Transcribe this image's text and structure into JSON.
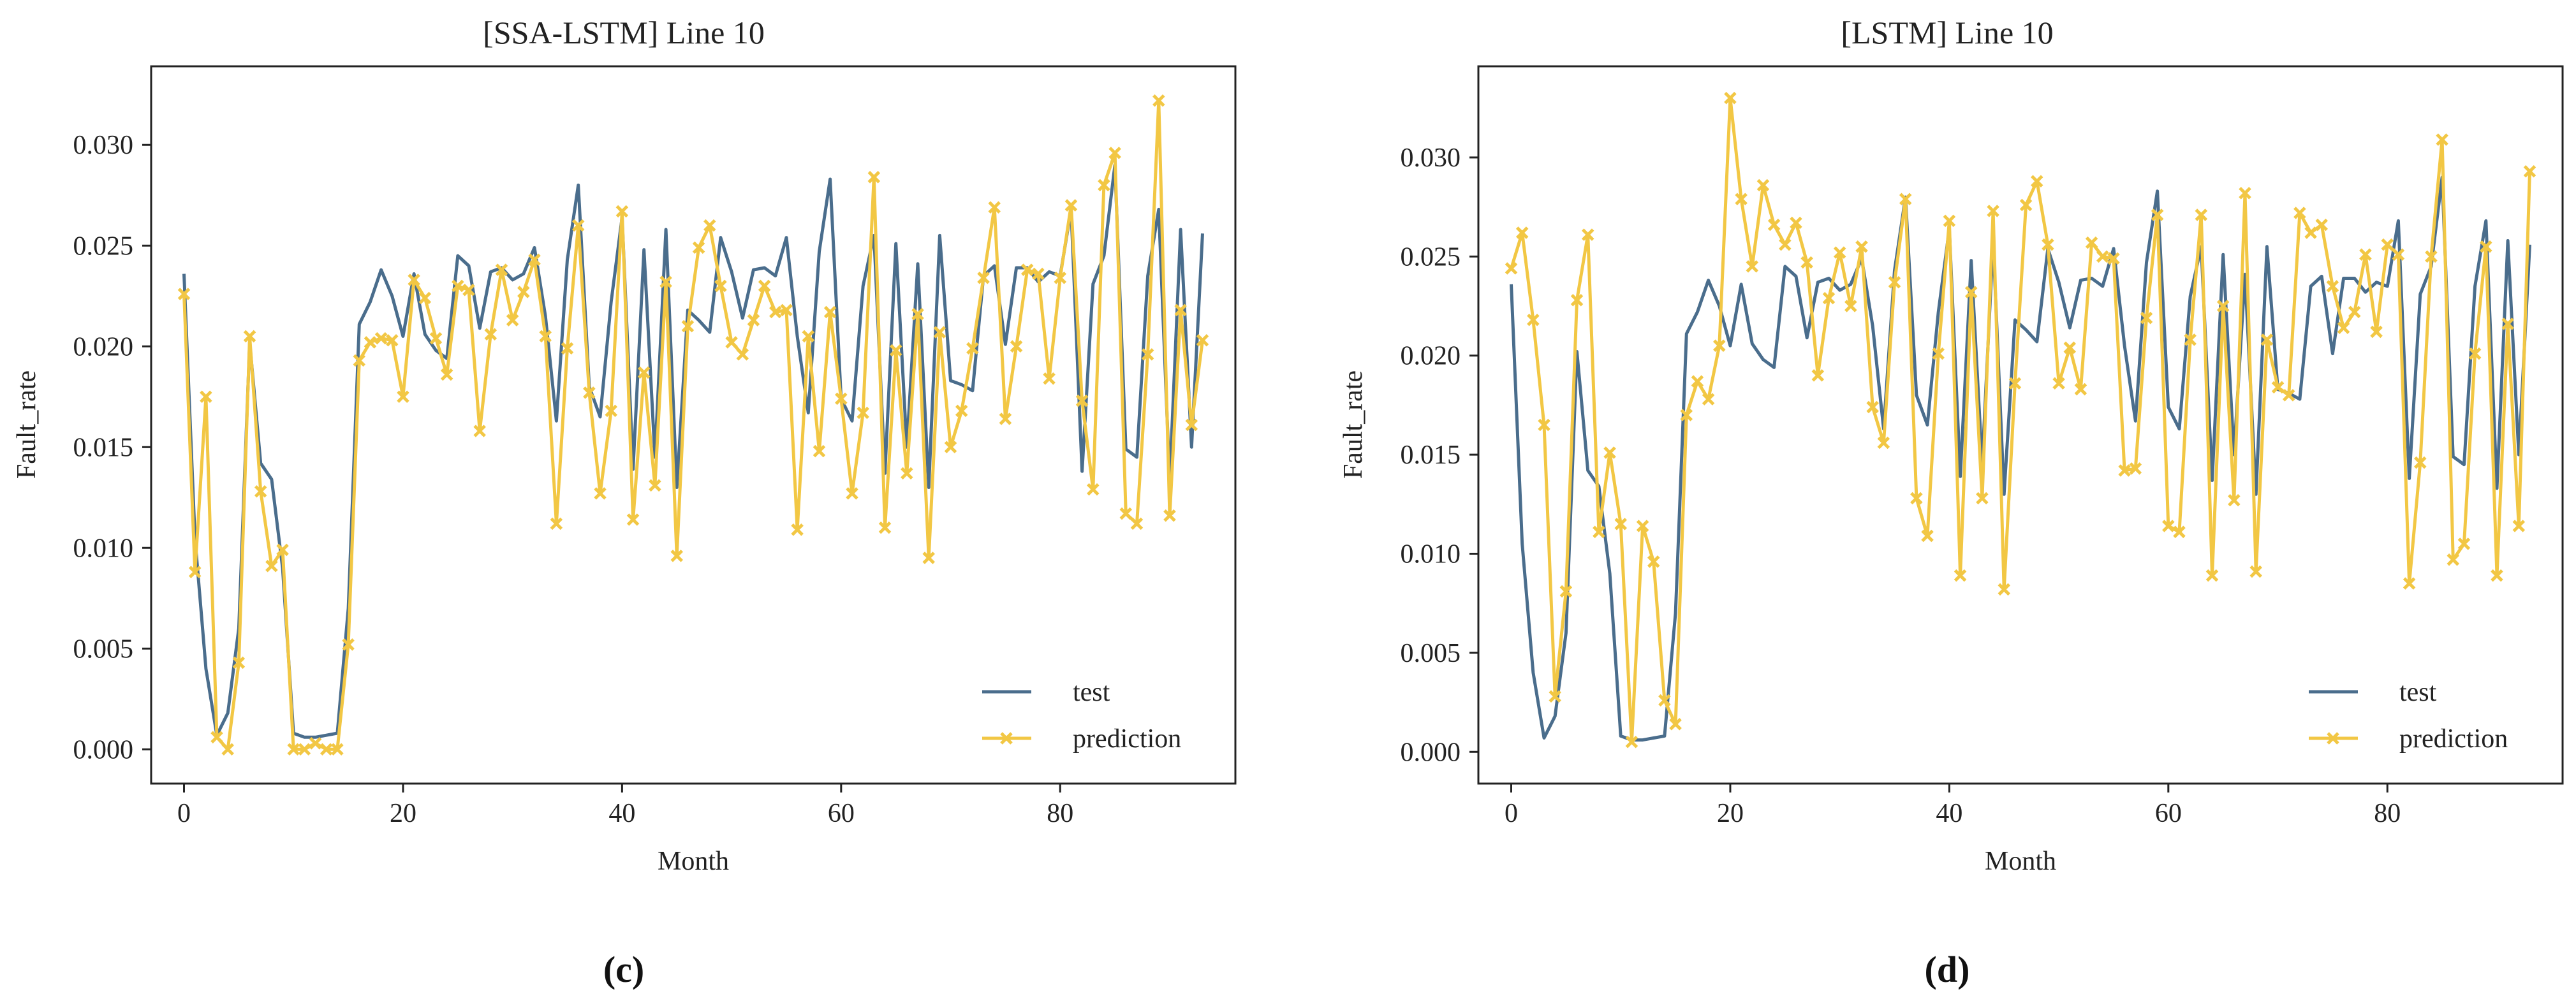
{
  "figure": {
    "panel_labels": [
      "(c)",
      "(d)"
    ]
  },
  "chart_data": [
    {
      "type": "line",
      "title": "[SSA-LSTM] Line 10",
      "xlabel": "Month",
      "ylabel": "Fault_rate",
      "xlim": [
        -3,
        96
      ],
      "ylim": [
        -0.0017,
        0.0339
      ],
      "xticks": [
        0,
        20,
        40,
        60,
        80
      ],
      "yticks": [
        0.0,
        0.005,
        0.01,
        0.015,
        0.02,
        0.025,
        0.03
      ],
      "ytick_labels": [
        "0.000",
        "0.005",
        "0.010",
        "0.015",
        "0.020",
        "0.025",
        "0.030"
      ],
      "legend_position": "lower-right",
      "series": [
        {
          "name": "test",
          "color": "#4a6d8c",
          "marker": "none",
          "values": [
            0.0236,
            0.0105,
            0.004,
            0.0007,
            0.0018,
            0.006,
            0.0202,
            0.0142,
            0.0134,
            0.009,
            0.0008,
            0.0006,
            0.0006,
            0.0007,
            0.0008,
            0.007,
            0.0211,
            0.0222,
            0.0238,
            0.0225,
            0.0205,
            0.0236,
            0.0206,
            0.0198,
            0.0194,
            0.0245,
            0.024,
            0.0209,
            0.0237,
            0.0239,
            0.0233,
            0.0236,
            0.0249,
            0.0215,
            0.0163,
            0.0243,
            0.028,
            0.018,
            0.0165,
            0.0222,
            0.0264,
            0.0139,
            0.0248,
            0.0145,
            0.0258,
            0.013,
            0.0218,
            0.0213,
            0.0207,
            0.0254,
            0.0237,
            0.0214,
            0.0238,
            0.0239,
            0.0235,
            0.0254,
            0.0205,
            0.0167,
            0.0247,
            0.0283,
            0.0174,
            0.0163,
            0.023,
            0.0255,
            0.0137,
            0.0251,
            0.015,
            0.0241,
            0.013,
            0.0255,
            0.0183,
            0.0181,
            0.0178,
            0.0235,
            0.024,
            0.0201,
            0.0239,
            0.0239,
            0.0232,
            0.0237,
            0.0235,
            0.0268,
            0.0138,
            0.0231,
            0.0245,
            0.029,
            0.0149,
            0.0145,
            0.0235,
            0.0268,
            0.0133,
            0.0258,
            0.015,
            0.0256
          ]
        },
        {
          "name": "prediction",
          "color": "#f2c744",
          "marker": "x",
          "values": [
            0.0226,
            0.0088,
            0.0175,
            0.0006,
            0.0,
            0.0043,
            0.0205,
            0.0128,
            0.0091,
            0.0099,
            0.0,
            0.0,
            0.0003,
            0.0,
            0.0,
            0.0052,
            0.0193,
            0.0202,
            0.0204,
            0.0203,
            0.0175,
            0.0233,
            0.0224,
            0.0204,
            0.0186,
            0.023,
            0.0228,
            0.0158,
            0.0206,
            0.0238,
            0.0213,
            0.0227,
            0.0243,
            0.0205,
            0.0112,
            0.0199,
            0.026,
            0.0177,
            0.0127,
            0.0168,
            0.0267,
            0.0114,
            0.0187,
            0.0131,
            0.0232,
            0.0096,
            0.021,
            0.0249,
            0.026,
            0.023,
            0.0202,
            0.0196,
            0.0213,
            0.023,
            0.0217,
            0.0218,
            0.0109,
            0.0205,
            0.0148,
            0.0217,
            0.0174,
            0.0127,
            0.0167,
            0.0284,
            0.011,
            0.0198,
            0.0137,
            0.0216,
            0.0095,
            0.0207,
            0.015,
            0.0168,
            0.0199,
            0.0234,
            0.0269,
            0.0164,
            0.02,
            0.0238,
            0.0236,
            0.0184,
            0.0234,
            0.027,
            0.0173,
            0.0129,
            0.028,
            0.0296,
            0.0117,
            0.0112,
            0.0196,
            0.0322,
            0.0116,
            0.0218,
            0.0161,
            0.0203
          ]
        }
      ]
    },
    {
      "type": "line",
      "title": "[LSTM] Line 10",
      "xlabel": "Month",
      "ylabel": "Fault_rate",
      "xlim": [
        -3,
        96
      ],
      "ylim": [
        -0.0016,
        0.0346
      ],
      "xticks": [
        0,
        20,
        40,
        60,
        80
      ],
      "yticks": [
        0.0,
        0.005,
        0.01,
        0.015,
        0.02,
        0.025,
        0.03
      ],
      "ytick_labels": [
        "0.000",
        "0.005",
        "0.010",
        "0.015",
        "0.020",
        "0.025",
        "0.030"
      ],
      "legend_position": "lower-right",
      "series": [
        {
          "name": "test",
          "color": "#4a6d8c",
          "marker": "none",
          "values": [
            0.0236,
            0.0105,
            0.004,
            0.0007,
            0.0018,
            0.006,
            0.0202,
            0.0142,
            0.0134,
            0.009,
            0.0008,
            0.0006,
            0.0006,
            0.0007,
            0.0008,
            0.007,
            0.0211,
            0.0222,
            0.0238,
            0.0225,
            0.0205,
            0.0236,
            0.0206,
            0.0198,
            0.0194,
            0.0245,
            0.024,
            0.0209,
            0.0237,
            0.0239,
            0.0233,
            0.0236,
            0.0249,
            0.0215,
            0.0163,
            0.0243,
            0.028,
            0.018,
            0.0165,
            0.0222,
            0.0264,
            0.0139,
            0.0248,
            0.0145,
            0.0258,
            0.013,
            0.0218,
            0.0213,
            0.0207,
            0.0254,
            0.0237,
            0.0214,
            0.0238,
            0.0239,
            0.0235,
            0.0254,
            0.0205,
            0.0167,
            0.0247,
            0.0283,
            0.0174,
            0.0163,
            0.023,
            0.0255,
            0.0137,
            0.0251,
            0.015,
            0.0241,
            0.013,
            0.0255,
            0.0183,
            0.0181,
            0.0178,
            0.0235,
            0.024,
            0.0201,
            0.0239,
            0.0239,
            0.0232,
            0.0237,
            0.0235,
            0.0268,
            0.0138,
            0.0231,
            0.0245,
            0.029,
            0.0149,
            0.0145,
            0.0235,
            0.0268,
            0.0133,
            0.0258,
            0.015,
            0.0256
          ]
        },
        {
          "name": "prediction",
          "color": "#f2c744",
          "marker": "x",
          "values": [
            0.0244,
            0.0262,
            0.0218,
            0.0165,
            0.0028,
            0.0081,
            0.0228,
            0.0261,
            0.0111,
            0.0151,
            0.0115,
            0.0005,
            0.0114,
            0.0096,
            0.0026,
            0.0014,
            0.017,
            0.0187,
            0.0178,
            0.0205,
            0.033,
            0.0279,
            0.0245,
            0.0286,
            0.0266,
            0.0256,
            0.0267,
            0.0247,
            0.019,
            0.0229,
            0.0252,
            0.0225,
            0.0255,
            0.0174,
            0.0156,
            0.0237,
            0.0279,
            0.0128,
            0.0109,
            0.0201,
            0.0268,
            0.0089,
            0.0232,
            0.0128,
            0.0273,
            0.0082,
            0.0186,
            0.0276,
            0.0288,
            0.0256,
            0.0186,
            0.0204,
            0.0183,
            0.0257,
            0.025,
            0.0249,
            0.0142,
            0.0143,
            0.0219,
            0.0271,
            0.0114,
            0.0111,
            0.0208,
            0.0271,
            0.0089,
            0.0225,
            0.0127,
            0.0282,
            0.0091,
            0.0208,
            0.0184,
            0.018,
            0.0272,
            0.0262,
            0.0266,
            0.0235,
            0.0214,
            0.0222,
            0.0251,
            0.0212,
            0.0256,
            0.0251,
            0.0085,
            0.0146,
            0.025,
            0.0309,
            0.0097,
            0.0105,
            0.0201,
            0.0255,
            0.0089,
            0.0216,
            0.0114,
            0.0293
          ]
        }
      ]
    }
  ]
}
